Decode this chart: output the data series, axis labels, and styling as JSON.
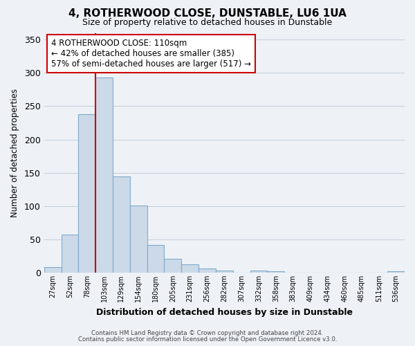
{
  "title": "4, ROTHERWOOD CLOSE, DUNSTABLE, LU6 1UA",
  "subtitle": "Size of property relative to detached houses in Dunstable",
  "xlabel": "Distribution of detached houses by size in Dunstable",
  "ylabel": "Number of detached properties",
  "bar_labels": [
    "27sqm",
    "52sqm",
    "78sqm",
    "103sqm",
    "129sqm",
    "154sqm",
    "180sqm",
    "205sqm",
    "231sqm",
    "256sqm",
    "282sqm",
    "307sqm",
    "332sqm",
    "358sqm",
    "383sqm",
    "409sqm",
    "434sqm",
    "460sqm",
    "485sqm",
    "511sqm",
    "536sqm"
  ],
  "bar_values": [
    8,
    57,
    238,
    293,
    144,
    101,
    42,
    21,
    12,
    6,
    3,
    0,
    3,
    2,
    0,
    0,
    0,
    0,
    0,
    0,
    2
  ],
  "bar_color": "#ccd9e8",
  "bar_edge_color": "#7faac8",
  "vline_index": 3,
  "vline_color": "#cc0000",
  "ylim": [
    0,
    360
  ],
  "yticks": [
    0,
    50,
    100,
    150,
    200,
    250,
    300,
    350
  ],
  "annotation_title": "4 ROTHERWOOD CLOSE: 110sqm",
  "annotation_line1": "← 42% of detached houses are smaller (385)",
  "annotation_line2": "57% of semi-detached houses are larger (517) →",
  "footer_line1": "Contains HM Land Registry data © Crown copyright and database right 2024.",
  "footer_line2": "Contains public sector information licensed under the Open Government Licence v3.0.",
  "bg_color": "#eef2f7",
  "plot_bg_color": "#eef2f7",
  "grid_color": "#c8d0dc"
}
